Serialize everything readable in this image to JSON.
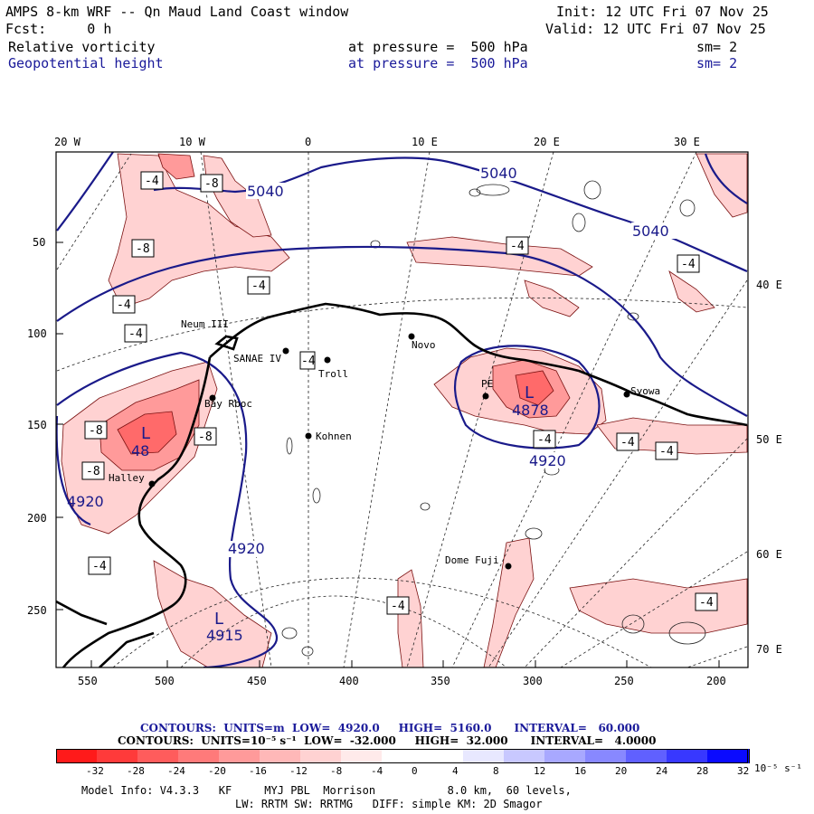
{
  "header": {
    "title": "AMPS 8-km WRF -- Qn Maud Land Coast window",
    "init": "Init: 12 UTC Fri 07 Nov 25",
    "fcst": "Fcst:     0 h",
    "valid": "Valid: 12 UTC Fri 07 Nov 25",
    "field1": {
      "name": "Relative vorticity",
      "level": "at pressure =  500 hPa",
      "sm": "sm= 2"
    },
    "field2": {
      "name": "Geopotential height",
      "level": "at pressure =  500 hPa",
      "sm": "sm= 2"
    }
  },
  "axes": {
    "top_lon": [
      "20 W",
      "10 W",
      "0",
      "10 E",
      "20 E",
      "30 E"
    ],
    "right_lon": [
      "40 E",
      "50 E",
      "60 E",
      "70 E"
    ],
    "left_y": [
      "50",
      "100",
      "150",
      "200",
      "250"
    ],
    "bottom_x": [
      "550",
      "500",
      "450",
      "400",
      "350",
      "300",
      "250",
      "200"
    ]
  },
  "places": [
    "Neum III",
    "SANAE IV",
    "Troll",
    "Novo",
    "Kohnen",
    "Halley",
    "Bay Rboc",
    "Syowa",
    "PE",
    "Dome Fuji"
  ],
  "height_labels": [
    "5040",
    "5040",
    "5040",
    "4920",
    "4920",
    "4920",
    "4878",
    "4915",
    "48"
  ],
  "vort_boxes": [
    "-4",
    "-8",
    "-8",
    "-4",
    "-4",
    "-4",
    "-4",
    "-8",
    "-8",
    "-8",
    "-4",
    "-4",
    "-4",
    "-4",
    "-4",
    "-4",
    "-4",
    "-4"
  ],
  "lows": [
    "L",
    "L",
    "L"
  ],
  "footer": {
    "line1": "CONTOURS:  UNITS=m  LOW=  4920.0     HIGH=  5160.0      INTERVAL=   60.000",
    "line2": "CONTOURS:  UNITS=10⁻⁵ s⁻¹  LOW=  -32.000     HIGH=  32.000      INTERVAL=   4.0000",
    "cbar_ticks": [
      "-32",
      "-28",
      "-24",
      "-20",
      "-16",
      "-12",
      "-8",
      "-4",
      "0",
      "4",
      "8",
      "12",
      "16",
      "20",
      "24",
      "28",
      "32"
    ],
    "cbar_unit": "10⁻⁵ s⁻¹",
    "cbar_colors": [
      "#ff1a1a",
      "#ff3a3a",
      "#ff5c5c",
      "#ff7a7a",
      "#ff9a9a",
      "#ffb8b8",
      "#ffd2d2",
      "#ffeaea",
      "#ffffff",
      "#ffffff",
      "#e8e8ff",
      "#c8c8ff",
      "#a8a8ff",
      "#8888ff",
      "#6060ff",
      "#3838ff",
      "#0a0aff"
    ],
    "info1": "Model Info: V4.3.3   KF     MYJ PBL  Morrison           8.0 km,  60 levels,",
    "info2": "LW: RRTM SW: RRTMG   DIFF: simple KM: 2D Smagor"
  }
}
